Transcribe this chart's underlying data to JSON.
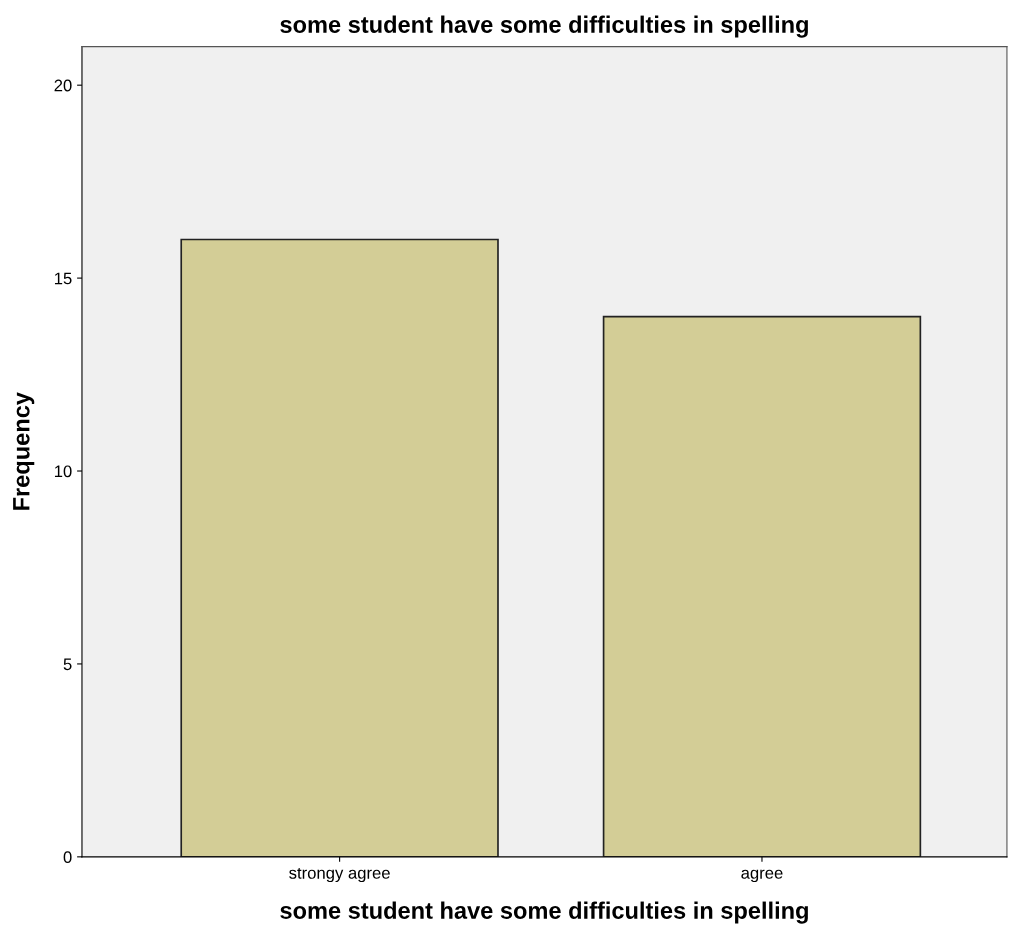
{
  "chart_data": {
    "type": "bar",
    "title": "some student have some difficulties in spelling",
    "xlabel": "some student have some difficulties in spelling",
    "ylabel": "Frequency",
    "categories": [
      "strongy agree",
      "agree"
    ],
    "values": [
      16,
      14
    ],
    "color": "#d3cd96",
    "ylim": [
      0,
      21
    ],
    "yticks": [
      0,
      5,
      10,
      15,
      20
    ],
    "grid": false,
    "legend": false
  }
}
